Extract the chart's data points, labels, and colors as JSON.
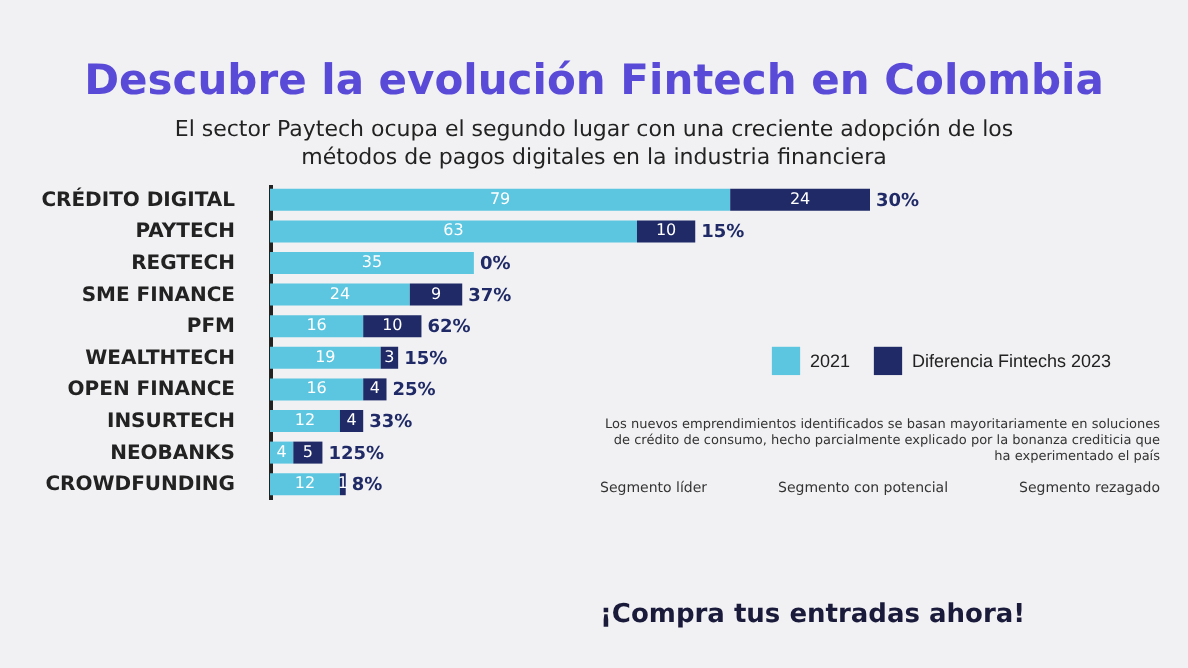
{
  "chart_data": {
    "type": "bar",
    "orientation": "horizontal",
    "stacked": true,
    "title": "Descubre la evolución Fintech en Colombia",
    "subtitle": "El sector Paytech ocupa el segundo lugar con una creciente adopción de los métodos de pagos digitales en la industria financiera",
    "categories": [
      "CRÉDITO DIGITAL",
      "PAYTECH",
      "REGTECH",
      "SME FINANCE",
      "PFM",
      "WEALTHTECH",
      "OPEN FINANCE",
      "INSURTECH",
      "NEOBANKS",
      "CROWDFUNDING"
    ],
    "series": [
      {
        "name": "2021",
        "color": "#5cc6e0",
        "values": [
          79,
          63,
          35,
          24,
          16,
          19,
          16,
          12,
          4,
          12
        ],
        "value_labels": [
          "79",
          "63",
          "35",
          "24",
          "16",
          "19",
          "16",
          "12",
          "4",
          "12"
        ]
      },
      {
        "name": "Diferencia Fintechs 2023",
        "color": "#1f2a66",
        "values": [
          24,
          10,
          0,
          9,
          10,
          3,
          4,
          4,
          5,
          1
        ],
        "value_labels": [
          "24",
          "10",
          null,
          "9",
          "10",
          "3",
          "4",
          "4",
          "5",
          "1"
        ]
      }
    ],
    "legend": "right",
    "annotations": [
      {
        "text": "30%",
        "x": 103,
        "y": "CRÉDITO DIGITAL"
      },
      {
        "text": "15%",
        "x": 73,
        "y": "PAYTECH"
      },
      {
        "text": "0%",
        "x": 35,
        "y": "REGTECH"
      },
      {
        "text": "37%",
        "x": 33,
        "y": "SME FINANCE"
      },
      {
        "text": "62%",
        "x": 26,
        "y": "PFM"
      },
      {
        "text": "15%",
        "x": 22,
        "y": "WEALTHTECH"
      },
      {
        "text": "25%",
        "x": 20,
        "y": "OPEN FINANCE"
      },
      {
        "text": "33%",
        "x": 16,
        "y": "INSURTECH"
      },
      {
        "text": "125%",
        "x": 9,
        "y": "NEOBANKS"
      },
      {
        "text": "8%",
        "x": 13,
        "y": "CROWDFUNDING"
      },
      "Los nuevos emprendimientos identificados se basan mayoritariamente en soluciones de crédito de consumo, hecho parcialmente explicado por la bonanza crediticia que ha experimentado el país",
      "Segmento líder",
      "Segmento con potencial",
      "Segmento rezagado",
      "¡Compra tus entradas ahora!"
    ]
  }
}
